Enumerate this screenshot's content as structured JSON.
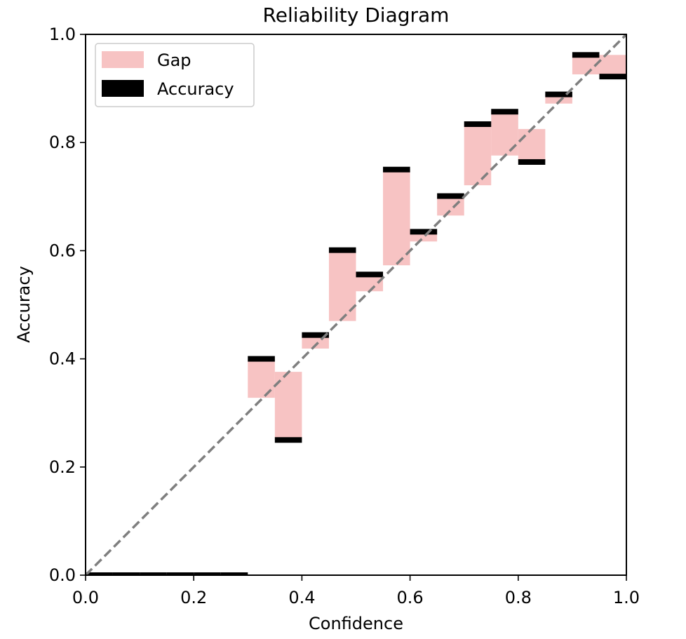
{
  "chart_data": {
    "type": "bar",
    "title": "Reliability Diagram",
    "xlabel": "Confidence",
    "ylabel": "Accuracy",
    "xlim": [
      0.0,
      1.0
    ],
    "ylim": [
      0.0,
      1.0
    ],
    "xticks": [
      "0.0",
      "0.2",
      "0.4",
      "0.6",
      "0.8",
      "1.0"
    ],
    "yticks": [
      "0.0",
      "0.2",
      "0.4",
      "0.6",
      "0.8",
      "1.0"
    ],
    "grid": false,
    "legend": {
      "placement": "top-left",
      "entries": [
        {
          "name": "Gap",
          "color": "#f4a9a9"
        },
        {
          "name": "Accuracy",
          "color": "#000000"
        }
      ]
    },
    "reference_line": {
      "x": [
        0.0,
        1.0
      ],
      "y": [
        0.0,
        1.0
      ],
      "style": "dashed",
      "color": "#7f7f7f"
    },
    "bins": [
      {
        "x0": 0.0,
        "x1": 0.05,
        "accuracy": 0.0,
        "confidence": null
      },
      {
        "x0": 0.05,
        "x1": 0.1,
        "accuracy": 0.0,
        "confidence": null
      },
      {
        "x0": 0.1,
        "x1": 0.15,
        "accuracy": 0.0,
        "confidence": null
      },
      {
        "x0": 0.15,
        "x1": 0.2,
        "accuracy": 0.0,
        "confidence": null
      },
      {
        "x0": 0.2,
        "x1": 0.25,
        "accuracy": 0.0,
        "confidence": null
      },
      {
        "x0": 0.25,
        "x1": 0.3,
        "accuracy": 0.0,
        "confidence": null
      },
      {
        "x0": 0.3,
        "x1": 0.35,
        "accuracy": 0.4,
        "confidence": 0.328
      },
      {
        "x0": 0.35,
        "x1": 0.4,
        "accuracy": 0.25,
        "confidence": 0.376
      },
      {
        "x0": 0.4,
        "x1": 0.45,
        "accuracy": 0.444,
        "confidence": 0.419
      },
      {
        "x0": 0.45,
        "x1": 0.5,
        "accuracy": 0.601,
        "confidence": 0.47
      },
      {
        "x0": 0.5,
        "x1": 0.55,
        "accuracy": 0.556,
        "confidence": 0.525
      },
      {
        "x0": 0.55,
        "x1": 0.6,
        "accuracy": 0.75,
        "confidence": 0.573
      },
      {
        "x0": 0.6,
        "x1": 0.65,
        "accuracy": 0.635,
        "confidence": 0.617
      },
      {
        "x0": 0.65,
        "x1": 0.7,
        "accuracy": 0.701,
        "confidence": 0.665
      },
      {
        "x0": 0.7,
        "x1": 0.75,
        "accuracy": 0.834,
        "confidence": 0.721
      },
      {
        "x0": 0.75,
        "x1": 0.8,
        "accuracy": 0.857,
        "confidence": 0.776
      },
      {
        "x0": 0.8,
        "x1": 0.85,
        "accuracy": 0.764,
        "confidence": 0.825
      },
      {
        "x0": 0.85,
        "x1": 0.9,
        "accuracy": 0.889,
        "confidence": 0.872
      },
      {
        "x0": 0.9,
        "x1": 0.95,
        "accuracy": 0.962,
        "confidence": 0.926
      },
      {
        "x0": 0.95,
        "x1": 1.0,
        "accuracy": 0.922,
        "confidence": 0.962
      }
    ]
  }
}
